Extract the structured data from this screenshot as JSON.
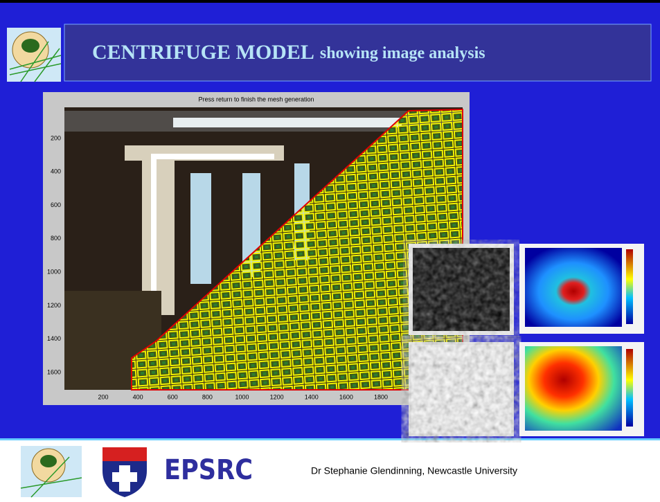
{
  "title": {
    "main": "CENTRIFUGE MODEL",
    "sub": "showing image analysis"
  },
  "figure": {
    "title": "Press return to finish the mesh generation",
    "xticks": [
      200,
      400,
      600,
      800,
      1000,
      1200,
      1400,
      1600,
      1800
    ],
    "yticks": [
      200,
      400,
      600,
      800,
      1000,
      1200,
      1400,
      1600
    ]
  },
  "footer": {
    "funder": "EPSRC",
    "credit": "Dr Stephanie Glendinning, Newcastle University"
  }
}
